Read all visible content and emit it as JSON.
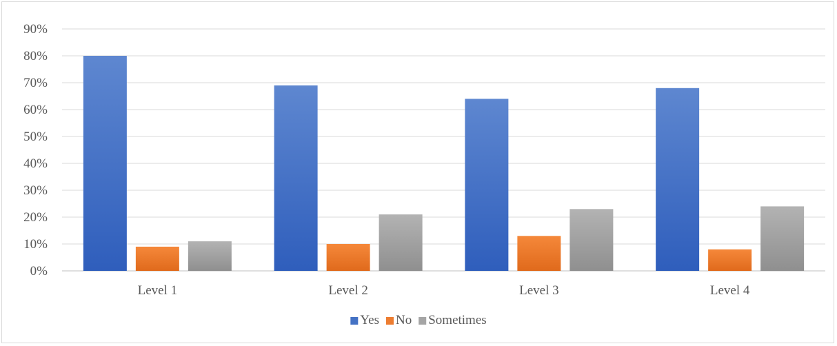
{
  "chart_data": {
    "type": "bar",
    "title": "",
    "xlabel": "",
    "ylabel": "",
    "categories": [
      "Level 1",
      "Level 2",
      "Level 3",
      "Level 4"
    ],
    "series": [
      {
        "name": "Yes",
        "color": "#4472C4",
        "values": [
          0.8,
          0.69,
          0.64,
          0.68
        ]
      },
      {
        "name": "No",
        "color": "#ED7D31",
        "values": [
          0.09,
          0.1,
          0.13,
          0.08
        ]
      },
      {
        "name": "Sometimes",
        "color": "#A5A5A5",
        "values": [
          0.11,
          0.21,
          0.23,
          0.24
        ]
      }
    ],
    "ylim": [
      0,
      0.9
    ],
    "yticks": [
      "0%",
      "10%",
      "20%",
      "30%",
      "40%",
      "50%",
      "60%",
      "70%",
      "80%",
      "90%"
    ],
    "grid": true,
    "legend_position": "bottom"
  }
}
